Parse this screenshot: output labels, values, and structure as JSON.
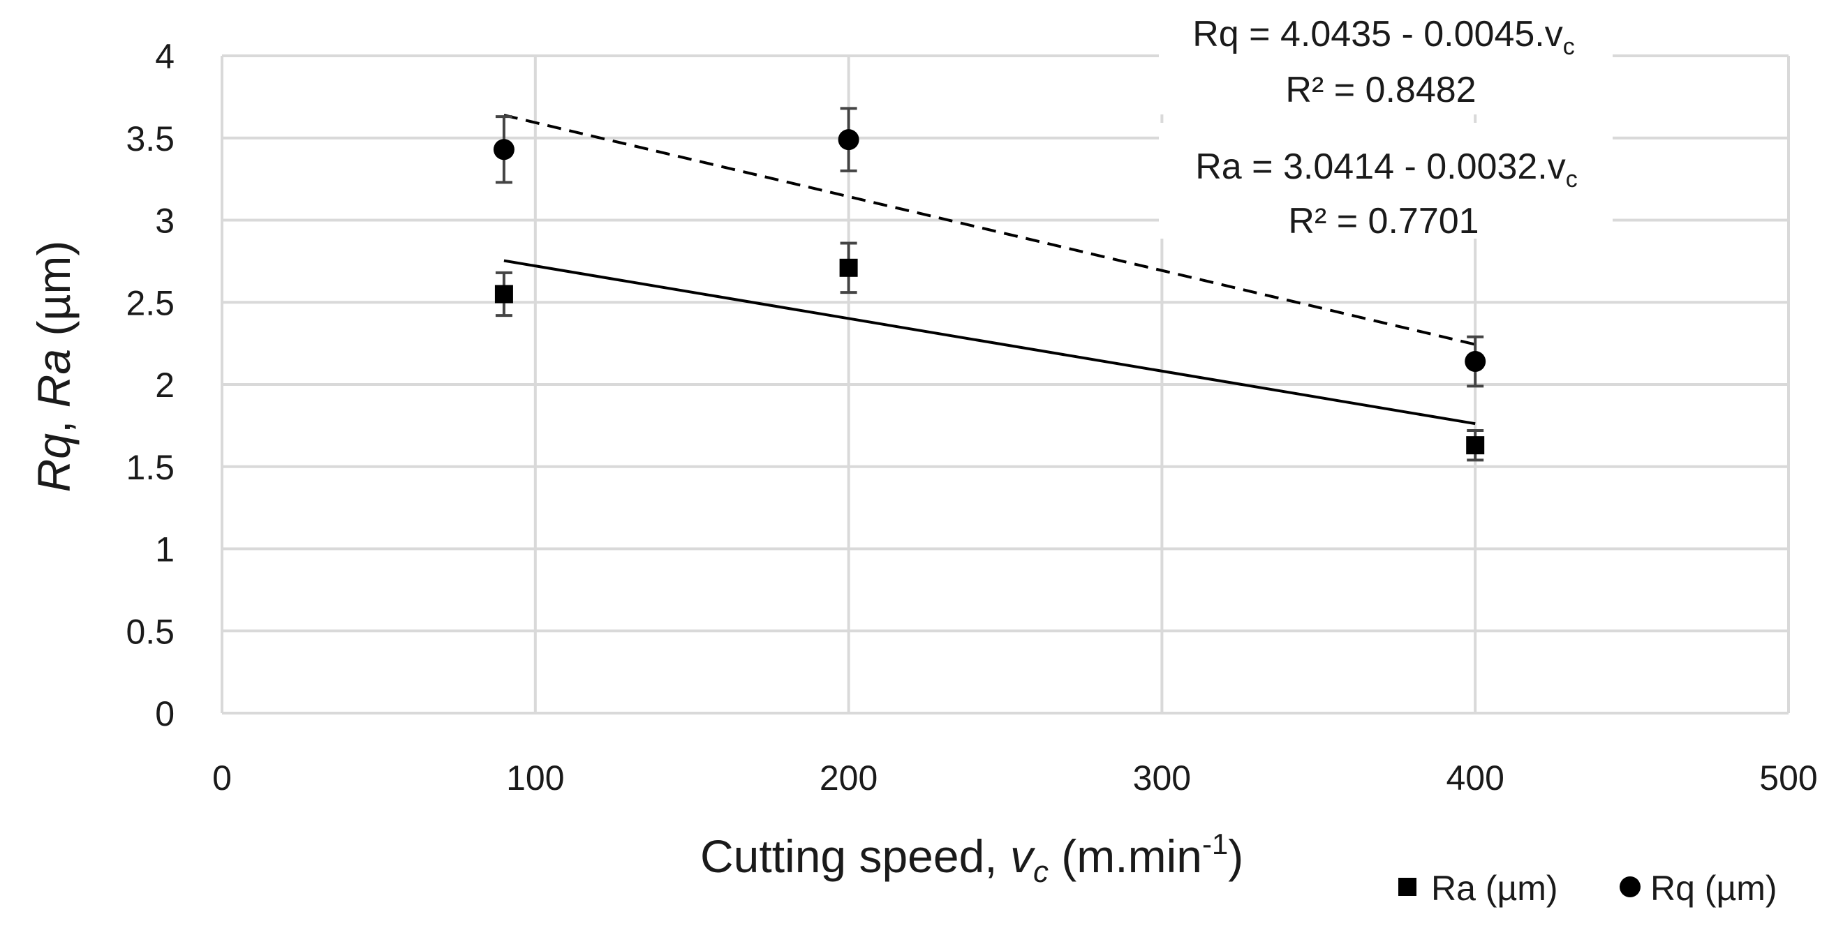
{
  "chart_data": {
    "type": "scatter",
    "title": "",
    "xlabel": {
      "main": "Cutting speed, ",
      "var": "v",
      "sub": "c",
      "units_open": " (m.min",
      "sup": "-1",
      "units_close": ")"
    },
    "ylabel": {
      "part1": "Rq",
      "sep": ", ",
      "part2": "Ra",
      "units": " (µm)"
    },
    "xlim": [
      0,
      500
    ],
    "ylim": [
      0,
      4
    ],
    "xticks": [
      0,
      100,
      200,
      300,
      400,
      500
    ],
    "xtick_labels": [
      "0",
      "100",
      "200",
      "300",
      "400",
      "500"
    ],
    "yticks": [
      0,
      0.5,
      1,
      1.5,
      2,
      2.5,
      3,
      3.5,
      4
    ],
    "ytick_labels": [
      "0",
      "0.5",
      "1",
      "1.5",
      "2",
      "2.5",
      "3",
      "3.5",
      "4"
    ],
    "grid": true,
    "series": [
      {
        "name": "Ra (µm)",
        "marker": "square",
        "x": [
          90,
          200,
          400
        ],
        "y": [
          2.55,
          2.71,
          1.63
        ],
        "err": [
          0.13,
          0.15,
          0.09
        ],
        "trendline": {
          "style": "solid",
          "intercept": 3.0414,
          "slope": -0.0032,
          "x_range": [
            90,
            400
          ]
        }
      },
      {
        "name": "Rq (µm)",
        "marker": "circle",
        "x": [
          90,
          200,
          400
        ],
        "y": [
          3.43,
          3.49,
          2.14
        ],
        "err": [
          0.2,
          0.19,
          0.15
        ],
        "trendline": {
          "style": "dashed",
          "intercept": 4.0435,
          "slope": -0.0045,
          "x_range": [
            90,
            400
          ]
        }
      }
    ],
    "annotations": [
      {
        "id": "rq",
        "line1_main": "Rq = 4.0435 - 0.0045.v",
        "line1_sub": "c",
        "line2": "R² = 0.8482"
      },
      {
        "id": "ra",
        "line1_main": "Ra = 3.0414 - 0.0032.v",
        "line1_sub": "c",
        "line2": "R² = 0.7701"
      }
    ],
    "legend_position": "bottom-right",
    "legend": [
      "Ra (µm)",
      "Rq (µm)"
    ]
  },
  "colors": {
    "marker": "#000000",
    "grid": "#d9d9d9",
    "text": "#1a1a1a",
    "errorbar": "#444444"
  }
}
